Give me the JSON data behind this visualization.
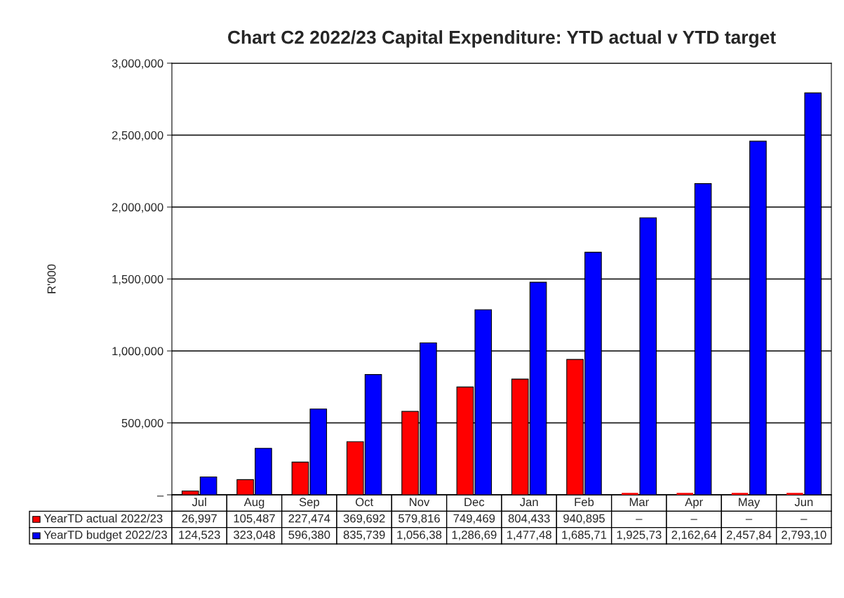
{
  "chart_data": {
    "type": "bar",
    "title": "Chart C2 2022/23 Capital Expenditure: YTD actual v YTD target",
    "ylabel": "R'000",
    "categories": [
      "Jul",
      "Aug",
      "Sep",
      "Oct",
      "Nov",
      "Dec",
      "Jan",
      "Feb",
      "Mar",
      "Apr",
      "May",
      "Jun"
    ],
    "series": [
      {
        "name": "YearTD actual 2022/23",
        "color": "#ff0000",
        "values": [
          26997,
          105487,
          227474,
          369692,
          579816,
          749469,
          804433,
          940895,
          0,
          0,
          0,
          0
        ],
        "value_labels": [
          "26,997",
          "105,487",
          "227,474",
          "369,692",
          "579,816",
          "749,469",
          "804,433",
          "940,895",
          "–",
          "–",
          "–",
          "–"
        ]
      },
      {
        "name": "YearTD budget 2022/23",
        "color": "#0000ff",
        "values": [
          124523,
          323048,
          596380,
          835739,
          1056380,
          1286690,
          1477480,
          1685710,
          1925730,
          2162640,
          2457840,
          2793100
        ],
        "value_labels": [
          "124,523",
          "323,048",
          "596,380",
          "835,739",
          "1,056,38",
          "1,286,69",
          "1,477,48",
          "1,685,71",
          "1,925,73",
          "2,162,64",
          "2,457,84",
          "2,793,10"
        ]
      }
    ],
    "ylim": [
      0,
      3000000
    ],
    "yticks": [
      {
        "value": 0,
        "label": "–"
      },
      {
        "value": 500000,
        "label": "500,000"
      },
      {
        "value": 1000000,
        "label": "1,000,000"
      },
      {
        "value": 1500000,
        "label": "1,500,000"
      },
      {
        "value": 2000000,
        "label": "2,000,000"
      },
      {
        "value": 2500000,
        "label": "2,500,000"
      },
      {
        "value": 3000000,
        "label": "3,000,000"
      }
    ],
    "grid": "y",
    "legend": "bottom"
  }
}
